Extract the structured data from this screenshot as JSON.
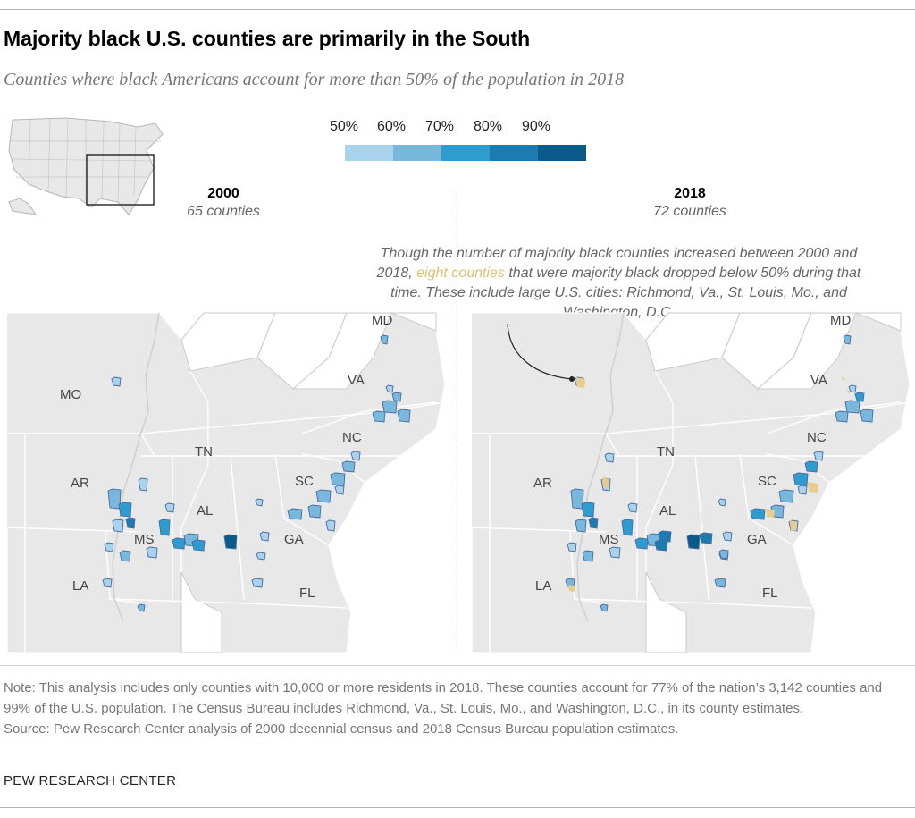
{
  "title": "Majority black U.S. counties are primarily in the South",
  "subtitle": "Counties where black Americans account for more than 50% of the population in 2018",
  "legend": {
    "labels": [
      "50%",
      "60%",
      "70%",
      "80%",
      "90%"
    ],
    "colors": [
      "#a9d2ec",
      "#78b8dc",
      "#2f9ccf",
      "#1a7cb0",
      "#0a5b89"
    ]
  },
  "panels": [
    {
      "year": "2000",
      "count": "65 counties"
    },
    {
      "year": "2018",
      "count": "72 counties"
    }
  ],
  "annotation": {
    "before": "Though the number of majority black counties increased between 2000 and 2018,",
    "highlight": "eight counties",
    "after": "that were majority black dropped below 50% during that time. These include large U.S. cities: Richmond, Va., St. Louis, Mo., and Washington, D.C."
  },
  "state_labels": [
    "MO",
    "AR",
    "LA",
    "MS",
    "TN",
    "AL",
    "GA",
    "FL",
    "SC",
    "NC",
    "VA",
    "MD"
  ],
  "colors": {
    "state_fill": "#e8e8e8",
    "state_stroke": "#ffffff",
    "outline": "#bdbdbd",
    "dropped": "#e8cc8c",
    "county_stroke": "#4a6aa0"
  },
  "note": "Note: This analysis includes only counties with 10,000 or more residents in 2018. These counties account for 77% of the nation’s 3,142 counties and 99% of the U.S. population. The Census Bureau includes Richmond, Va., St. Louis, Mo., and Washington, D.C., in its county estimates.",
  "source": "Source: Pew Research Center analysis of 2000 decennial census and 2018 Census Bureau population estimates.",
  "footer": "PEW RESEARCH CENTER"
}
